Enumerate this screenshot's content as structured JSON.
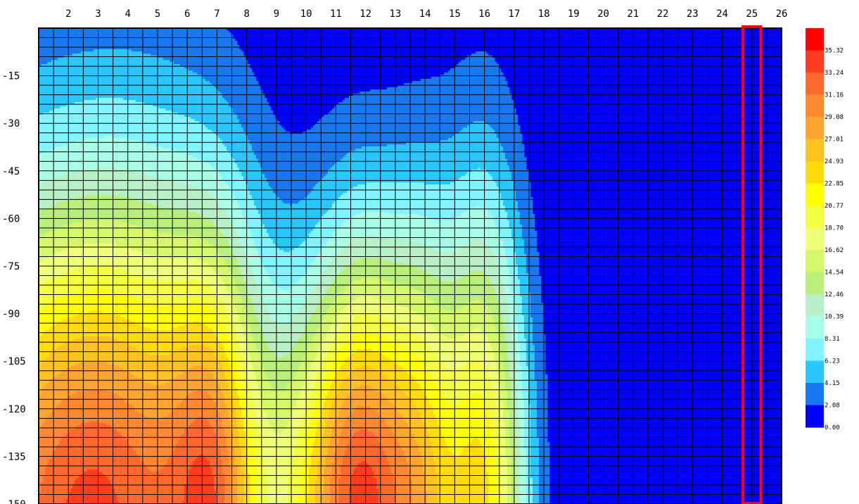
{
  "chart_data": {
    "type": "heatmap",
    "title": "",
    "xlabel": "",
    "ylabel": "",
    "x_ticks": [
      2,
      3,
      4,
      5,
      6,
      7,
      8,
      9,
      10,
      11,
      12,
      13,
      14,
      15,
      16,
      17,
      18,
      19,
      20,
      21,
      22,
      23,
      24,
      25,
      26
    ],
    "x_range": [
      1,
      26
    ],
    "y_ticks": [
      -15,
      -30,
      -45,
      -60,
      -75,
      -90,
      -105,
      -120,
      -135,
      -150
    ],
    "y_range": [
      -150,
      0
    ],
    "grid": true,
    "highlight_x": 25,
    "highlight_color": "#ff0000",
    "colorbar_labels": [
      "35.32",
      "33.24",
      "31.16",
      "29.08",
      "27.01",
      "24.93",
      "22.85",
      "20.77",
      "18.70",
      "16.62",
      "14.54",
      "12.46",
      "10.39",
      "8.31",
      "6.23",
      "4.15",
      "2.08",
      "0.00"
    ],
    "colorbar_colors": [
      "#ff0000",
      "#ff3c1e",
      "#ff6a2c",
      "#ff8a32",
      "#ffa630",
      "#ffc21e",
      "#ffdc0a",
      "#ffff00",
      "#f3ff40",
      "#f0ff78",
      "#d4f86a",
      "#b8f07a",
      "#b8f0c8",
      "#a8ffe8",
      "#80f4ff",
      "#28c8ff",
      "#1878f0",
      "#0000ff"
    ],
    "legend_position": "right"
  }
}
